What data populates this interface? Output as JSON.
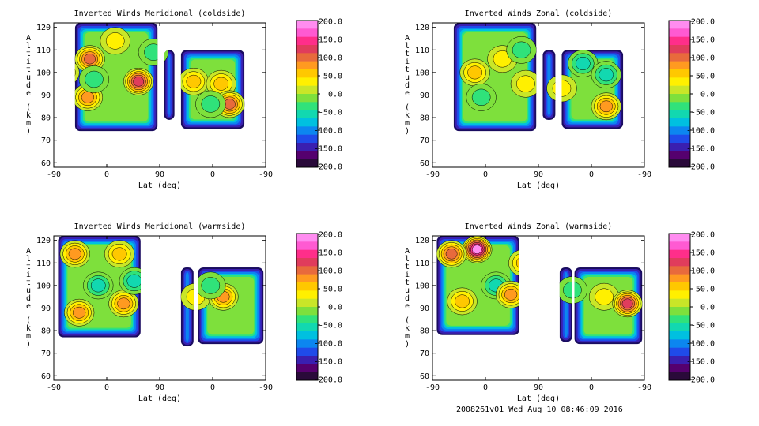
{
  "footer": "2008261v01 Wed Aug 10 08:46:09 2016",
  "chart_data": [
    {
      "type": "heatmap",
      "title": "Inverted Winds Meridional (coldside)",
      "xlabel": "Lat (deg)",
      "ylabel": "Altitude (km)",
      "x_ticks": [
        "-90",
        "0",
        "90",
        "0",
        "-90"
      ],
      "y_ticks": [
        60,
        70,
        80,
        90,
        100,
        110,
        120
      ],
      "ylim": [
        58,
        122
      ],
      "colorbar": {
        "labels": [
          "200.0",
          "150.0",
          "100.0",
          "50.0",
          "0.0",
          "-50.0",
          "-100.0",
          "-150.0",
          "-200.0"
        ],
        "range": [
          -200,
          200
        ]
      },
      "blobs": [
        {
          "x": 0.17,
          "y": 106,
          "value": 95
        },
        {
          "x": 0.4,
          "y": 96,
          "value": 130
        },
        {
          "x": 0.16,
          "y": 89,
          "value": 70
        },
        {
          "x": 0.47,
          "y": 109,
          "value": -20
        },
        {
          "x": 0.29,
          "y": 114,
          "value": 10
        },
        {
          "x": 0.05,
          "y": 100,
          "value": 50
        },
        {
          "x": 0.19,
          "y": 97,
          "value": -30
        },
        {
          "x": 0.66,
          "y": 96,
          "value": 40
        },
        {
          "x": 0.79,
          "y": 95,
          "value": 55
        },
        {
          "x": 0.83,
          "y": 86,
          "value": 95
        },
        {
          "x": 0.74,
          "y": 86,
          "value": -10
        }
      ]
    },
    {
      "type": "heatmap",
      "title": "Inverted Winds Zonal (coldside)",
      "xlabel": "Lat (deg)",
      "ylabel": "Altitude (km)",
      "x_ticks": [
        "-90",
        "0",
        "90",
        "0",
        "-90"
      ],
      "y_ticks": [
        60,
        70,
        80,
        90,
        100,
        110,
        120
      ],
      "ylim": [
        58,
        122
      ],
      "colorbar": {
        "labels": [
          "200.0",
          "150.0",
          "100.0",
          "50.0",
          "0.0",
          "-50.0",
          "-100.0",
          "-150.0",
          "-200.0"
        ],
        "range": [
          -200,
          200
        ]
      },
      "blobs": [
        {
          "x": 0.2,
          "y": 100,
          "value": 45
        },
        {
          "x": 0.33,
          "y": 106,
          "value": 35
        },
        {
          "x": 0.23,
          "y": 89,
          "value": -20
        },
        {
          "x": 0.42,
          "y": 110,
          "value": -25
        },
        {
          "x": 0.44,
          "y": 95,
          "value": 15
        },
        {
          "x": 0.71,
          "y": 104,
          "value": -40
        },
        {
          "x": 0.82,
          "y": 99,
          "value": -55
        },
        {
          "x": 0.82,
          "y": 85,
          "value": 70
        },
        {
          "x": 0.61,
          "y": 93,
          "value": 10
        }
      ]
    },
    {
      "type": "heatmap",
      "title": "Inverted Winds Meridional (warmside)",
      "xlabel": "Lat (deg)",
      "ylabel": "Altitude (km)",
      "x_ticks": [
        "-90",
        "0",
        "90",
        "0",
        "-90"
      ],
      "y_ticks": [
        60,
        70,
        80,
        90,
        100,
        110,
        120
      ],
      "ylim": [
        58,
        122
      ],
      "colorbar": {
        "labels": [
          "200.0",
          "150.0",
          "100.0",
          "50.0",
          "0.0",
          "-50.0",
          "-100.0",
          "-150.0",
          "-200.0"
        ],
        "range": [
          -200,
          200
        ]
      },
      "blobs": [
        {
          "x": 0.12,
          "y": 88,
          "value": 80
        },
        {
          "x": 0.1,
          "y": 114,
          "value": 75
        },
        {
          "x": 0.31,
          "y": 114,
          "value": 60
        },
        {
          "x": 0.33,
          "y": 92,
          "value": 70
        },
        {
          "x": 0.21,
          "y": 100,
          "value": -40
        },
        {
          "x": 0.38,
          "y": 102,
          "value": -50
        },
        {
          "x": 0.67,
          "y": 95,
          "value": 35
        },
        {
          "x": 0.8,
          "y": 95,
          "value": 80
        },
        {
          "x": 0.74,
          "y": 100,
          "value": -15
        }
      ]
    },
    {
      "type": "heatmap",
      "title": "Inverted Winds Zonal (warmside)",
      "xlabel": "Lat (deg)",
      "ylabel": "Altitude (km)",
      "x_ticks": [
        "-90",
        "0",
        "90",
        "0",
        "-90"
      ],
      "y_ticks": [
        60,
        70,
        80,
        90,
        100,
        110,
        120
      ],
      "ylim": [
        58,
        122
      ],
      "colorbar": {
        "labels": [
          "200.0",
          "150.0",
          "100.0",
          "50.0",
          "0.0",
          "-50.0",
          "-100.0",
          "-150.0",
          "-200.0"
        ],
        "range": [
          -200,
          200
        ]
      },
      "blobs": [
        {
          "x": 0.21,
          "y": 116,
          "value": 170
        },
        {
          "x": 0.09,
          "y": 114,
          "value": 110
        },
        {
          "x": 0.14,
          "y": 93,
          "value": 40
        },
        {
          "x": 0.3,
          "y": 100,
          "value": -60
        },
        {
          "x": 0.37,
          "y": 96,
          "value": 80
        },
        {
          "x": 0.43,
          "y": 110,
          "value": 40
        },
        {
          "x": 0.66,
          "y": 98,
          "value": -10
        },
        {
          "x": 0.81,
          "y": 95,
          "value": 35
        },
        {
          "x": 0.92,
          "y": 92,
          "value": 120
        }
      ]
    }
  ]
}
